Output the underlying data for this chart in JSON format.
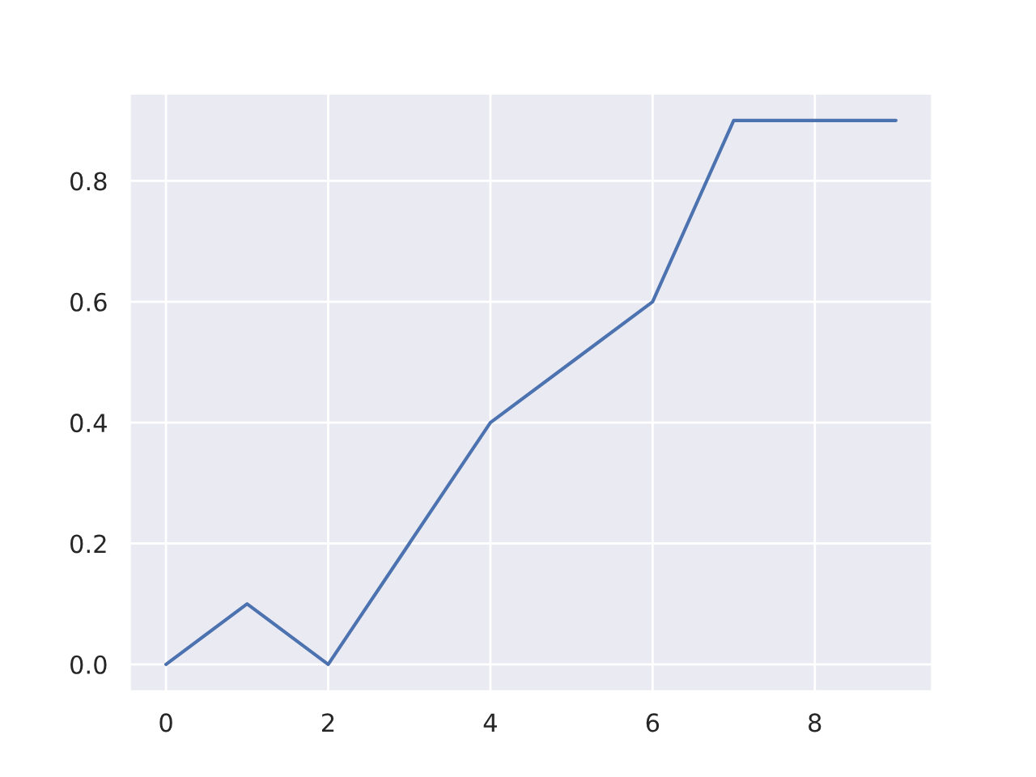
{
  "chart_data": {
    "type": "line",
    "x": [
      0,
      1,
      2,
      3,
      4,
      5,
      6,
      7,
      8,
      9
    ],
    "series": [
      {
        "color": "#4c72b0",
        "values": [
          0,
          0.1,
          0,
          0.2,
          0.4,
          0.5,
          0.6,
          0.9,
          0.9,
          0.9
        ]
      }
    ],
    "xlim": [
      -0.45,
      9.45
    ],
    "ylim": [
      -0.045,
      0.945
    ],
    "xticks": [
      0,
      2,
      4,
      6,
      8
    ],
    "yticks": [
      {
        "value": 0,
        "label": "0.0"
      },
      0.2,
      0.4,
      0.6,
      0.8
    ],
    "grid": true,
    "marker": "none",
    "line_style": "solid"
  }
}
